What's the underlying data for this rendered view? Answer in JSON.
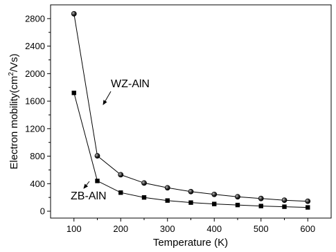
{
  "chart_data": {
    "type": "line",
    "xlabel": "Temperature (K)",
    "ylabel": {
      "prefix": "Electron mobility(cm",
      "superscript": "2",
      "suffix": "/Vs)"
    },
    "xlim": [
      50,
      650
    ],
    "ylim": [
      -100,
      3000
    ],
    "xticks": [
      100,
      200,
      300,
      400,
      500,
      600
    ],
    "yticks": [
      0,
      400,
      800,
      1200,
      1600,
      2000,
      2400,
      2800
    ],
    "grid": false,
    "legend": "none",
    "x": [
      100,
      150,
      200,
      250,
      300,
      350,
      400,
      450,
      500,
      550,
      600
    ],
    "series": [
      {
        "name": "WZ-AlN",
        "marker": "circle",
        "values": [
          2870,
          805,
          530,
          410,
          340,
          285,
          245,
          210,
          185,
          160,
          145
        ]
      },
      {
        "name": "ZB-AlN",
        "marker": "square",
        "values": [
          1720,
          440,
          270,
          200,
          155,
          125,
          105,
          90,
          75,
          65,
          55
        ]
      }
    ],
    "annotations": [
      {
        "text": "WZ-AlN",
        "target": "WZ-AlN"
      },
      {
        "text": "ZB-AlN",
        "target": "ZB-AlN"
      }
    ]
  }
}
